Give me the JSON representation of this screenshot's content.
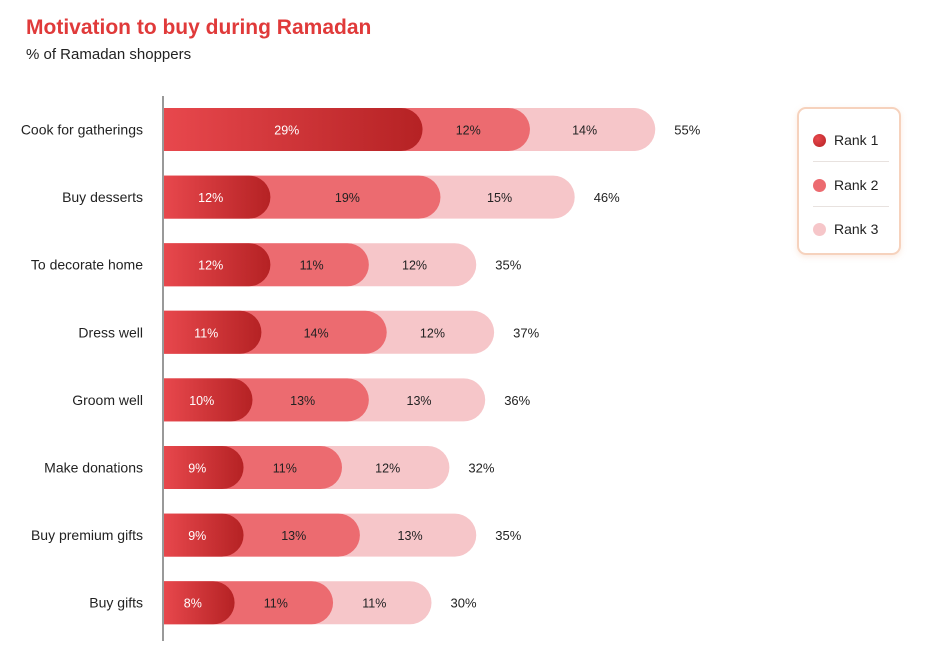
{
  "chart_data": {
    "type": "bar",
    "orientation": "horizontal",
    "stacked": true,
    "title": "Motivation to buy during Ramadan",
    "subtitle": "% of Ramadan shoppers",
    "categories": [
      "Cook for gatherings",
      "Buy desserts",
      "To decorate home",
      "Dress well",
      "Groom well",
      "Make donations",
      "Buy premium gifts",
      "Buy gifts"
    ],
    "series": [
      {
        "name": "Rank 1",
        "values": [
          29,
          12,
          12,
          11,
          10,
          9,
          9,
          8
        ],
        "labels": [
          "29%",
          "12%",
          "12%",
          "11%",
          "10%",
          "9%",
          "9%",
          "8%"
        ],
        "color": "#b52224"
      },
      {
        "name": "Rank 2",
        "values": [
          12,
          19,
          11,
          14,
          13,
          11,
          13,
          11
        ],
        "labels": [
          "12%",
          "19%",
          "11%",
          "14%",
          "13%",
          "11%",
          "13%",
          "11%"
        ],
        "color": "#ec6b70"
      },
      {
        "name": "Rank 3",
        "values": [
          14,
          15,
          12,
          12,
          13,
          12,
          13,
          11
        ],
        "labels": [
          "14%",
          "15%",
          "12%",
          "12%",
          "13%",
          "12%",
          "13%",
          "11%"
        ],
        "color": "#f6c6c9"
      }
    ],
    "totals": [
      "55%",
      "46%",
      "35%",
      "37%",
      "36%",
      "32%",
      "35%",
      "30%"
    ],
    "legend_position": "top-right",
    "grid": false
  }
}
